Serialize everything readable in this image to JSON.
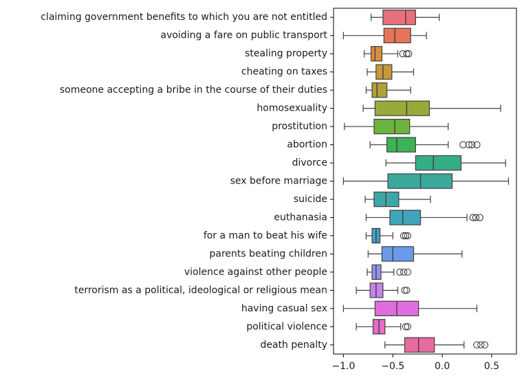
{
  "chart_data": {
    "type": "boxplot",
    "orientation": "horizontal",
    "title": "",
    "xlabel": "",
    "ylabel": "",
    "xlim": [
      -1.1,
      0.75
    ],
    "xticks": [
      -1.0,
      -0.5,
      0.0,
      0.5
    ],
    "xtick_labels": [
      "−1.0",
      "−0.5",
      "0.0",
      "0.5"
    ],
    "grid": false,
    "series": [
      {
        "label": "claiming government benefits to which you are not entitled",
        "color": "#e8707b",
        "whisker_low": -0.72,
        "q1": -0.6,
        "median": -0.37,
        "q3": -0.27,
        "whisker_high": -0.03,
        "outliers": []
      },
      {
        "label": "avoiding a fare on public transport",
        "color": "#e7745a",
        "whisker_low": -1.0,
        "q1": -0.59,
        "median": -0.48,
        "q3": -0.32,
        "whisker_high": -0.16,
        "outliers": []
      },
      {
        "label": "stealing property",
        "color": "#d88e3c",
        "whisker_low": -0.79,
        "q1": -0.72,
        "median": -0.68,
        "q3": -0.61,
        "whisker_high": -0.45,
        "outliers": [
          -0.4,
          -0.36,
          -0.34
        ]
      },
      {
        "label": "cheating on taxes",
        "color": "#c49b37",
        "whisker_low": -0.76,
        "q1": -0.67,
        "median": -0.6,
        "q3": -0.51,
        "whisker_high": -0.29,
        "outliers": []
      },
      {
        "label": "someone accepting a bribe in the course of their duties",
        "color": "#b0a23a",
        "whisker_low": -0.77,
        "q1": -0.71,
        "median": -0.66,
        "q3": -0.56,
        "whisker_high": -0.32,
        "outliers": []
      },
      {
        "label": "homosexuality",
        "color": "#98ab3a",
        "whisker_low": -0.8,
        "q1": -0.68,
        "median": -0.36,
        "q3": -0.13,
        "whisker_high": 0.59,
        "outliers": []
      },
      {
        "label": "prostitution",
        "color": "#6db33f",
        "whisker_low": -0.99,
        "q1": -0.69,
        "median": -0.48,
        "q3": -0.33,
        "whisker_high": 0.06,
        "outliers": []
      },
      {
        "label": "abortion",
        "color": "#3db257",
        "whisker_low": -0.73,
        "q1": -0.56,
        "median": -0.46,
        "q3": -0.27,
        "whisker_high": 0.06,
        "outliers": [
          0.21,
          0.27,
          0.3,
          0.35
        ]
      },
      {
        "label": "divorce",
        "color": "#37ad87",
        "whisker_low": -0.57,
        "q1": -0.27,
        "median": -0.09,
        "q3": 0.19,
        "whisker_high": 0.64,
        "outliers": []
      },
      {
        "label": "sex before marriage",
        "color": "#39aa9a",
        "whisker_low": -1.0,
        "q1": -0.55,
        "median": -0.22,
        "q3": 0.1,
        "whisker_high": 0.67,
        "outliers": []
      },
      {
        "label": "suicide",
        "color": "#3ca7a9",
        "whisker_low": -0.78,
        "q1": -0.69,
        "median": -0.57,
        "q3": -0.44,
        "whisker_high": -0.12,
        "outliers": []
      },
      {
        "label": "euthanasia",
        "color": "#3ea4b8",
        "whisker_low": -0.77,
        "q1": -0.53,
        "median": -0.4,
        "q3": -0.22,
        "whisker_high": 0.25,
        "outliers": [
          0.31,
          0.34,
          0.38
        ]
      },
      {
        "label": "for a man to beat his wife",
        "color": "#41a0c9",
        "whisker_low": -0.77,
        "q1": -0.71,
        "median": -0.67,
        "q3": -0.63,
        "whisker_high": -0.5,
        "outliers": [
          -0.39,
          -0.37,
          -0.35
        ]
      },
      {
        "label": "parents beating children",
        "color": "#6a9be8",
        "whisker_low": -0.75,
        "q1": -0.61,
        "median": -0.5,
        "q3": -0.29,
        "whisker_high": 0.2,
        "outliers": []
      },
      {
        "label": "violence against other people",
        "color": "#9b8ff0",
        "whisker_low": -0.76,
        "q1": -0.71,
        "median": -0.67,
        "q3": -0.62,
        "whisker_high": -0.49,
        "outliers": [
          -0.43,
          -0.39,
          -0.35
        ]
      },
      {
        "label": "terrorism as a political, ideological or religious mean",
        "color": "#c585ec",
        "whisker_low": -0.87,
        "q1": -0.73,
        "median": -0.67,
        "q3": -0.6,
        "whisker_high": -0.45,
        "outliers": [
          -0.38,
          -0.36
        ]
      },
      {
        "label": "having casual sex",
        "color": "#e06ddf",
        "whisker_low": -1.0,
        "q1": -0.68,
        "median": -0.46,
        "q3": -0.24,
        "whisker_high": 0.35,
        "outliers": []
      },
      {
        "label": "political violence",
        "color": "#e76bc8",
        "whisker_low": -0.87,
        "q1": -0.7,
        "median": -0.64,
        "q3": -0.58,
        "whisker_high": -0.42,
        "outliers": [
          -0.37,
          -0.35
        ]
      },
      {
        "label": "death penalty",
        "color": "#e86b9f",
        "whisker_low": -0.58,
        "q1": -0.38,
        "median": -0.24,
        "q3": -0.08,
        "whisker_high": 0.22,
        "outliers": [
          0.35,
          0.39,
          0.43
        ]
      }
    ]
  }
}
